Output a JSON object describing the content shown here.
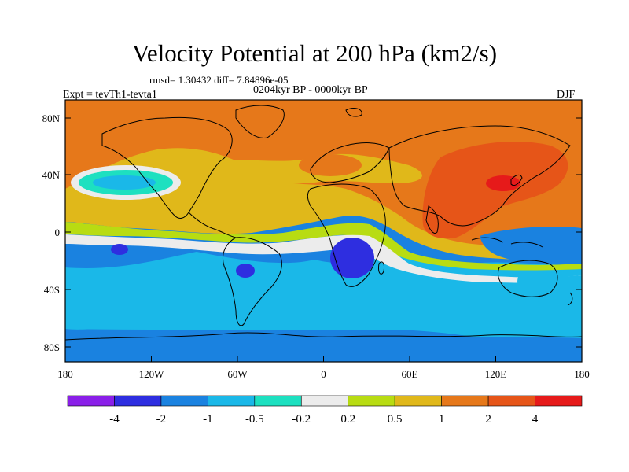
{
  "title": "Velocity Potential at 200 hPa (km2/s)",
  "stats_line": "rmsd= 1.30432 diff= 7.84896e-05",
  "period_line": "0204kyr BP - 0000kyr BP",
  "experiment": "Expt = tevTh1-tevta1",
  "season": "DJF",
  "lat_labels": [
    "80N",
    "40N",
    "0",
    "40S",
    "80S"
  ],
  "lon_labels": [
    "180",
    "120W",
    "60W",
    "0",
    "60E",
    "120E",
    "180"
  ],
  "colorbar": {
    "labels": [
      "-4",
      "-2",
      "-1",
      "-0.5",
      "-0.2",
      "0.2",
      "0.5",
      "1",
      "2",
      "4"
    ],
    "colors": [
      "#8a1fe8",
      "#2e2ee0",
      "#1a82e0",
      "#1ab8e8",
      "#1de0c0",
      "#ececec",
      "#b8dc12",
      "#e0b81a",
      "#e6781a",
      "#e65518",
      "#e61a1a"
    ]
  },
  "map_colors": {
    "land_outline": "#000000",
    "frame": "#000000"
  }
}
